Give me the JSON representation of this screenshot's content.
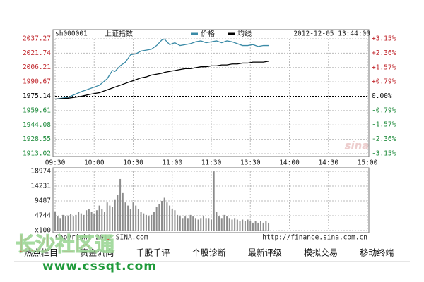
{
  "chart_data": [
    {
      "type": "line",
      "code": "sh000001",
      "name": "上证指数",
      "timestamp": "2012-12-05 13:44:00",
      "logo": "sina",
      "x": [
        0,
        10,
        20,
        26,
        30,
        34,
        40,
        44,
        46,
        50,
        54,
        58,
        62,
        66,
        70,
        74,
        78,
        82,
        84,
        88,
        92,
        96,
        100,
        104,
        108,
        112,
        116,
        120,
        124,
        128,
        132,
        136,
        140,
        144,
        148,
        152,
        156,
        160,
        164
      ],
      "series": [
        {
          "name": "价格",
          "color": "#3a8aa6",
          "values": [
            1972,
            1974,
            1980,
            1983,
            1985,
            1987,
            1994,
            2003,
            2002,
            2008,
            2012,
            2020,
            2021,
            2024,
            2025,
            2026,
            2030,
            2036,
            2037,
            2031,
            2033,
            2030,
            2031,
            2032,
            2034,
            2035,
            2033,
            2034,
            2035,
            2033,
            2035,
            2034,
            2032,
            2030,
            2030,
            2031,
            2029,
            2030,
            2030
          ]
        },
        {
          "name": "均线",
          "color": "#000000",
          "values": [
            1972,
            1973,
            1975,
            1977,
            1978,
            1979,
            1982,
            1984,
            1985,
            1987,
            1989,
            1991,
            1993,
            1995,
            1996,
            1998,
            1999,
            2000,
            2001,
            2002,
            2003,
            2004,
            2005,
            2005,
            2006,
            2007,
            2007,
            2008,
            2008,
            2009,
            2009,
            2010,
            2010,
            2011,
            2011,
            2012,
            2012,
            2012,
            2013
          ]
        }
      ],
      "xlim": [
        0,
        240
      ],
      "xticks": [
        {
          "value": 0,
          "label": "09:30"
        },
        {
          "value": 30,
          "label": "10:00"
        },
        {
          "value": 60,
          "label": "10:30"
        },
        {
          "value": 90,
          "label": "11:00"
        },
        {
          "value": 120,
          "label": "11:30"
        },
        {
          "value": 150,
          "label": "13:30"
        },
        {
          "value": 180,
          "label": "14:00"
        },
        {
          "value": 210,
          "label": "14:30"
        },
        {
          "value": 240,
          "label": "15:00"
        }
      ],
      "ylim": [
        1913.02,
        2037.27
      ],
      "yticks": [
        2037.27,
        2021.74,
        2006.21,
        1990.67,
        1975.14,
        1959.61,
        1944.08,
        1928.55,
        1913.02
      ],
      "y2lim": [
        -3.15,
        3.15
      ],
      "y2ticks": [
        {
          "value": 3.15,
          "label": "+3.15%"
        },
        {
          "value": 2.36,
          "label": "+2.36%"
        },
        {
          "value": 1.57,
          "label": "+1.57%"
        },
        {
          "value": 0.79,
          "label": "+0.79%"
        },
        {
          "value": 0,
          "label": "0.00%"
        },
        {
          "value": -0.79,
          "label": "-0.79%"
        },
        {
          "value": -1.57,
          "label": "-1.57%"
        },
        {
          "value": -2.36,
          "label": "-2.36%"
        },
        {
          "value": -3.15,
          "label": "-3.15%"
        }
      ],
      "grid": true
    },
    {
      "type": "bar",
      "x": [
        0,
        2,
        4,
        6,
        8,
        10,
        12,
        14,
        16,
        18,
        20,
        22,
        24,
        26,
        28,
        30,
        32,
        34,
        36,
        38,
        40,
        42,
        44,
        46,
        48,
        50,
        52,
        54,
        56,
        58,
        60,
        62,
        64,
        66,
        68,
        70,
        72,
        74,
        76,
        78,
        80,
        82,
        84,
        86,
        88,
        90,
        92,
        94,
        96,
        98,
        100,
        102,
        104,
        106,
        108,
        110,
        112,
        114,
        116,
        118,
        120,
        122,
        124,
        126,
        128,
        130,
        132,
        134,
        136,
        138,
        140,
        142,
        144,
        146,
        148,
        150,
        152,
        154,
        156,
        158,
        160,
        162,
        164
      ],
      "values": [
        6100,
        4500,
        4000,
        5000,
        4500,
        4800,
        5200,
        4500,
        5000,
        6000,
        5500,
        5000,
        6500,
        7000,
        6000,
        5500,
        6500,
        8000,
        7000,
        6000,
        9000,
        8000,
        7500,
        10000,
        11500,
        16500,
        12000,
        9000,
        8000,
        7000,
        9000,
        8000,
        7000,
        6000,
        5500,
        5000,
        4500,
        5000,
        6000,
        7500,
        8500,
        9500,
        10500,
        9000,
        8000,
        7000,
        6500,
        5000,
        4500,
        4000,
        4500,
        4000,
        5000,
        4500,
        4000,
        3500,
        4000,
        4500,
        4000,
        4000,
        3500,
        18900,
        6000,
        4500,
        4000,
        5000,
        4500,
        4000,
        3500,
        4000,
        3500,
        3000,
        3500,
        3000,
        3500,
        3000,
        2500,
        3000,
        2500,
        3000,
        2500,
        3000,
        2500
      ],
      "color": "#8c8c8c",
      "xlim": [
        0,
        240
      ],
      "ylim": [
        0,
        18974
      ],
      "yticks": [
        {
          "value": 0,
          "label": "x100"
        },
        4744,
        9487,
        14231,
        18974
      ],
      "grid": true
    }
  ],
  "footer": {
    "copyright": "Copyright 2012 SINA.com",
    "url": "http://finance.sina.com.cn"
  },
  "menu": [
    "热点栏目",
    "资金流向",
    "千股千评",
    "个股诊断",
    "最新评级",
    "模拟交易",
    "移动终端"
  ],
  "watermark": {
    "name": "长沙社区通",
    "site": "www.cssqt.com"
  }
}
